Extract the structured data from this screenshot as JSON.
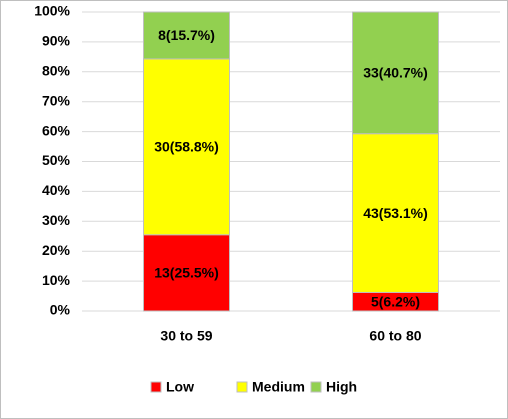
{
  "chart_data": {
    "type": "stacked_bar_100",
    "categories": [
      "30 to 59",
      "60 to 80"
    ],
    "series": [
      {
        "name": "Low",
        "color": "#ff0000",
        "values": [
          25.5,
          6.2
        ],
        "value_labels": [
          "13(25.5%)",
          "5(6.2%)"
        ]
      },
      {
        "name": "Medium",
        "color": "#ffff00",
        "values": [
          58.8,
          53.1
        ],
        "value_labels": [
          "30(58.8%)",
          "43(53.1%)"
        ]
      },
      {
        "name": "High",
        "color": "#92d050",
        "values": [
          15.7,
          40.7
        ],
        "value_labels": [
          "8(15.7%)",
          "33(40.7%)"
        ]
      }
    ],
    "ylim": [
      0,
      100
    ],
    "yticks": [
      {
        "value": 0,
        "label": "0%"
      },
      {
        "value": 10,
        "label": "10%"
      },
      {
        "value": 20,
        "label": "20%"
      },
      {
        "value": 30,
        "label": "30%"
      },
      {
        "value": 40,
        "label": "40%"
      },
      {
        "value": 50,
        "label": "50%"
      },
      {
        "value": 60,
        "label": "60%"
      },
      {
        "value": 70,
        "label": "70%"
      },
      {
        "value": 80,
        "label": "80%"
      },
      {
        "value": 90,
        "label": "90%"
      },
      {
        "value": 100,
        "label": "100%"
      }
    ],
    "grid": true,
    "legend": "bottom"
  }
}
